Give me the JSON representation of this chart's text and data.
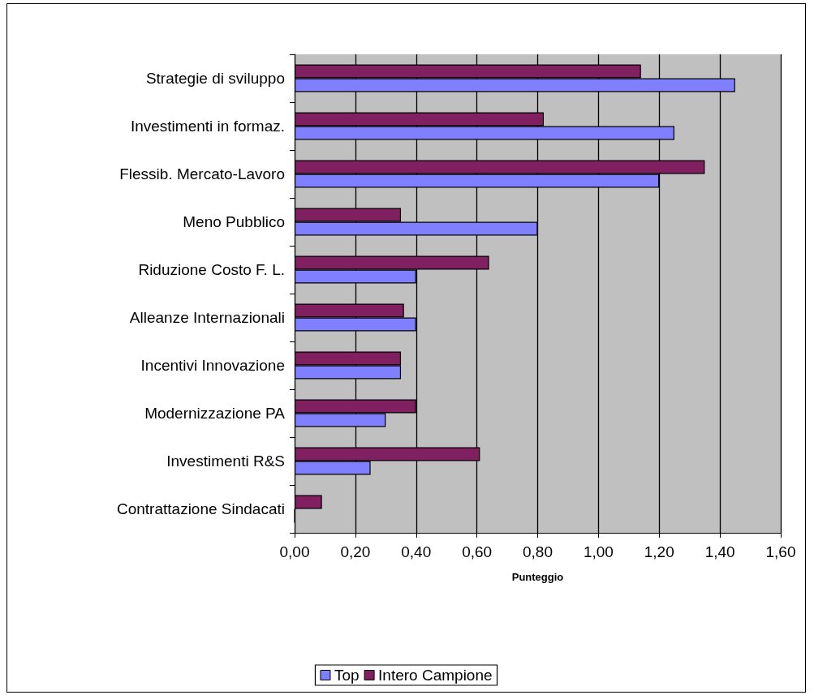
{
  "chart_data": {
    "type": "bar",
    "orientation": "horizontal",
    "xlabel": "Punteggio",
    "categories": [
      "Strategie di sviluppo",
      "Investimenti in formaz.",
      "Flessib. Mercato-Lavoro",
      "Meno Pubblico",
      "Riduzione Costo F. L.",
      "Alleanze Internazionali",
      "Incentivi Innovazione",
      "Modernizzazione PA",
      "Investimenti R&S",
      "Contrattazione Sindacati"
    ],
    "series": [
      {
        "name": "Top",
        "color": "#8080ff",
        "values": [
          1.45,
          1.25,
          1.2,
          0.8,
          0.4,
          0.4,
          0.35,
          0.3,
          0.25,
          0
        ]
      },
      {
        "name": "Intero Campione",
        "color": "#802060",
        "values": [
          1.14,
          0.82,
          1.35,
          0.35,
          0.64,
          0.36,
          0.35,
          0.4,
          0.61,
          0.09
        ]
      }
    ],
    "xlim": [
      0,
      1.6
    ],
    "xticks": [
      {
        "value": 0,
        "label": "0,00"
      },
      {
        "value": 0.2,
        "label": "0,20"
      },
      {
        "value": 0.4,
        "label": "0,40"
      },
      {
        "value": 0.6,
        "label": "0,60"
      },
      {
        "value": 0.8,
        "label": "0,80"
      },
      {
        "value": 1.0,
        "label": "1,00"
      },
      {
        "value": 1.2,
        "label": "1,20"
      },
      {
        "value": 1.4,
        "label": "1,40"
      },
      {
        "value": 1.6,
        "label": "1,60"
      }
    ],
    "grid": "x",
    "legend": "bottom"
  }
}
